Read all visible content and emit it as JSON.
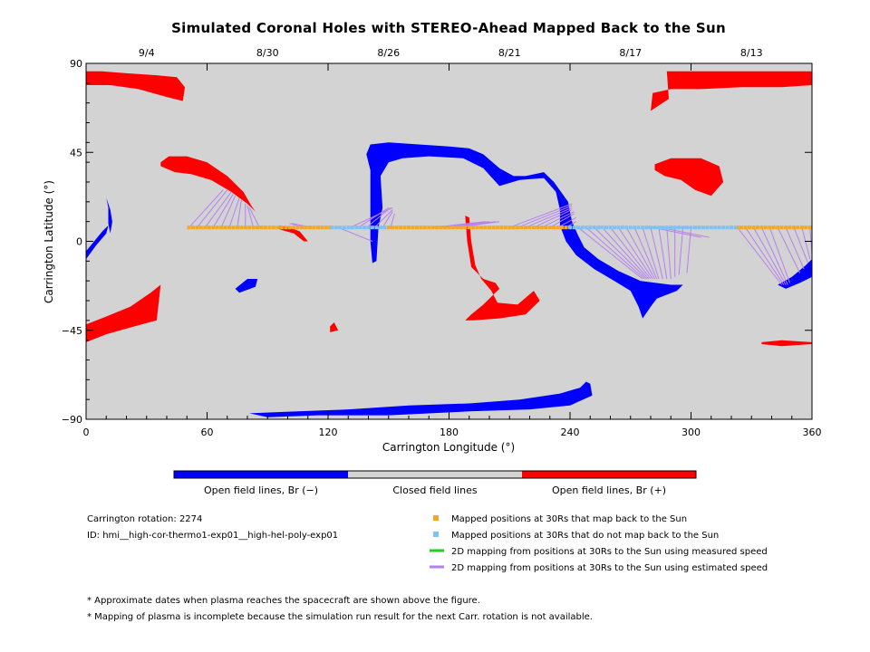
{
  "title": "Simulated Coronal Holes with STEREO-Ahead Mapped Back to the Sun",
  "chart_data": {
    "type": "scatter",
    "title": "Simulated Coronal Holes with STEREO-Ahead Mapped Back to the Sun",
    "xlabel": "Carrington Longitude (°)",
    "ylabel": "Carrington Latitude (°)",
    "xlim": [
      0,
      360
    ],
    "ylim": [
      -90,
      90
    ],
    "x_ticks": [
      0,
      60,
      120,
      180,
      240,
      300,
      360
    ],
    "y_ticks": [
      -90,
      -45,
      0,
      45,
      90
    ],
    "y_tick_labels": [
      "−90",
      "−45",
      "0",
      "45",
      "90"
    ],
    "top_axis_dates": [
      {
        "lon": 30,
        "label": "9/4"
      },
      {
        "lon": 90,
        "label": "8/30"
      },
      {
        "lon": 150,
        "label": "8/26"
      },
      {
        "lon": 210,
        "label": "8/21"
      },
      {
        "lon": 270,
        "label": "8/17"
      },
      {
        "lon": 330,
        "label": "8/13"
      }
    ],
    "mapped_positions_lat": 7,
    "series": [
      {
        "name": "Mapped positions at 30Rs that map back to the Sun",
        "color": "#f5a623",
        "x_ranges": [
          [
            51,
            122
          ],
          [
            150,
            240
          ],
          [
            323,
            360
          ]
        ]
      },
      {
        "name": "Mapped positions at 30Rs that do not map back to the Sun",
        "color": "#7cc3f5",
        "x_ranges": [
          [
            122,
            150
          ],
          [
            240,
            323
          ]
        ]
      },
      {
        "name": "2D mapping from positions at 30Rs to the Sun using measured speed",
        "color": "#1fd21f"
      },
      {
        "name": "2D mapping from positions at 30Rs to the Sun using estimated speed",
        "color": "#b87ff2"
      }
    ],
    "mapping_lines": [
      {
        "x0": 51,
        "x1": 68,
        "y1": 26
      },
      {
        "x0": 55,
        "x1": 70,
        "y1": 26
      },
      {
        "x0": 59,
        "x1": 72,
        "y1": 25
      },
      {
        "x0": 63,
        "x1": 73,
        "y1": 24
      },
      {
        "x0": 67,
        "x1": 74,
        "y1": 23
      },
      {
        "x0": 71,
        "x1": 76,
        "y1": 22
      },
      {
        "x0": 75,
        "x1": 77,
        "y1": 21
      },
      {
        "x0": 79,
        "x1": 79,
        "y1": 19
      },
      {
        "x0": 83,
        "x1": 80,
        "y1": 18
      },
      {
        "x0": 86,
        "x1": 81,
        "y1": 17
      },
      {
        "x0": 112,
        "x1": 102,
        "y1": 9
      },
      {
        "x0": 108,
        "x1": 101,
        "y1": 9
      },
      {
        "x0": 135,
        "x1": 150,
        "y1": 17
      },
      {
        "x0": 139,
        "x1": 151,
        "y1": 17
      },
      {
        "x0": 143,
        "x1": 152,
        "y1": 16
      },
      {
        "x0": 147,
        "x1": 152,
        "y1": 15
      },
      {
        "x0": 151,
        "x1": 153,
        "y1": 14
      },
      {
        "x0": 125,
        "x1": 142,
        "y1": 0
      },
      {
        "x0": 131,
        "x1": 152,
        "y1": 17
      },
      {
        "x0": 172,
        "x1": 198,
        "y1": 10
      },
      {
        "x0": 176,
        "x1": 200,
        "y1": 10
      },
      {
        "x0": 180,
        "x1": 203,
        "y1": 10
      },
      {
        "x0": 184,
        "x1": 205,
        "y1": 10
      },
      {
        "x0": 210,
        "x1": 241,
        "y1": 19
      },
      {
        "x0": 214,
        "x1": 241,
        "y1": 18
      },
      {
        "x0": 218,
        "x1": 241,
        "y1": 17
      },
      {
        "x0": 222,
        "x1": 241,
        "y1": 16
      },
      {
        "x0": 226,
        "x1": 242,
        "y1": 15
      },
      {
        "x0": 230,
        "x1": 242,
        "y1": 14
      },
      {
        "x0": 234,
        "x1": 243,
        "y1": 12
      },
      {
        "x0": 238,
        "x1": 243,
        "y1": 10
      },
      {
        "x0": 244,
        "x1": 276,
        "y1": -19
      },
      {
        "x0": 248,
        "x1": 277,
        "y1": -19
      },
      {
        "x0": 252,
        "x1": 278,
        "y1": -19
      },
      {
        "x0": 256,
        "x1": 279,
        "y1": -19
      },
      {
        "x0": 260,
        "x1": 280,
        "y1": -19
      },
      {
        "x0": 264,
        "x1": 281,
        "y1": -19
      },
      {
        "x0": 268,
        "x1": 282,
        "y1": -19
      },
      {
        "x0": 272,
        "x1": 283,
        "y1": -19
      },
      {
        "x0": 276,
        "x1": 284,
        "y1": -19
      },
      {
        "x0": 280,
        "x1": 286,
        "y1": -19
      },
      {
        "x0": 284,
        "x1": 288,
        "y1": -19
      },
      {
        "x0": 288,
        "x1": 290,
        "y1": -19
      },
      {
        "x0": 292,
        "x1": 292,
        "y1": -18
      },
      {
        "x0": 296,
        "x1": 294,
        "y1": -17
      },
      {
        "x0": 300,
        "x1": 298,
        "y1": -16
      },
      {
        "x0": 277,
        "x1": 301,
        "y1": 7
      },
      {
        "x0": 281,
        "x1": 305,
        "y1": 2
      },
      {
        "x0": 285,
        "x1": 309,
        "y1": 2
      },
      {
        "x0": 323,
        "x1": 345,
        "y1": -22
      },
      {
        "x0": 327,
        "x1": 346,
        "y1": -22
      },
      {
        "x0": 331,
        "x1": 347,
        "y1": -22
      },
      {
        "x0": 335,
        "x1": 348,
        "y1": -22
      },
      {
        "x0": 339,
        "x1": 349,
        "y1": -21
      },
      {
        "x0": 343,
        "x1": 354,
        "y1": -16
      },
      {
        "x0": 347,
        "x1": 356,
        "y1": -14
      },
      {
        "x0": 351,
        "x1": 358,
        "y1": -11
      },
      {
        "x0": 355,
        "x1": 359,
        "y1": -9
      },
      {
        "x0": 359,
        "x1": 360,
        "y1": -7
      }
    ],
    "regions": [
      {
        "polarity": "positive",
        "color": "#ff0000",
        "points": [
          [
            0,
            86
          ],
          [
            8,
            86
          ],
          [
            20,
            85
          ],
          [
            35,
            84
          ],
          [
            45,
            83
          ],
          [
            49,
            78
          ],
          [
            48,
            71
          ],
          [
            40,
            73
          ],
          [
            26,
            77
          ],
          [
            12,
            79
          ],
          [
            0,
            79
          ]
        ]
      },
      {
        "polarity": "positive",
        "color": "#ff0000",
        "points": [
          [
            288,
            86
          ],
          [
            305,
            86
          ],
          [
            325,
            86
          ],
          [
            345,
            86
          ],
          [
            360,
            86
          ],
          [
            360,
            79
          ],
          [
            345,
            78
          ],
          [
            325,
            78
          ],
          [
            305,
            77
          ],
          [
            290,
            77
          ],
          [
            281,
            75
          ],
          [
            280,
            66
          ],
          [
            289,
            72
          ],
          [
            288,
            86
          ]
        ]
      },
      {
        "polarity": "positive",
        "color": "#ff0000",
        "points": [
          [
            37,
            40
          ],
          [
            41,
            43
          ],
          [
            50,
            43
          ],
          [
            60,
            40
          ],
          [
            70,
            33
          ],
          [
            78,
            25
          ],
          [
            82,
            18
          ],
          [
            84,
            15
          ],
          [
            80,
            19
          ],
          [
            72,
            25
          ],
          [
            62,
            31
          ],
          [
            52,
            34
          ],
          [
            44,
            35
          ],
          [
            37,
            38
          ]
        ]
      },
      {
        "polarity": "positive",
        "color": "#ff0000",
        "points": [
          [
            282,
            39
          ],
          [
            290,
            42
          ],
          [
            305,
            42
          ],
          [
            314,
            38
          ],
          [
            316,
            30
          ],
          [
            310,
            23
          ],
          [
            302,
            26
          ],
          [
            295,
            31
          ],
          [
            287,
            33
          ],
          [
            282,
            36
          ]
        ]
      },
      {
        "polarity": "positive",
        "color": "#ff0000",
        "points": [
          [
            0,
            -42
          ],
          [
            10,
            -38
          ],
          [
            22,
            -33
          ],
          [
            32,
            -26
          ],
          [
            37,
            -22
          ],
          [
            35,
            -40
          ],
          [
            24,
            -43
          ],
          [
            10,
            -47
          ],
          [
            0,
            -51
          ]
        ]
      },
      {
        "polarity": "positive",
        "color": "#ff0000",
        "points": [
          [
            188,
            13
          ],
          [
            189,
            0
          ],
          [
            191,
            -13
          ],
          [
            197,
            -19
          ],
          [
            203,
            -21
          ],
          [
            205,
            -24
          ],
          [
            197,
            -32
          ],
          [
            191,
            -37
          ],
          [
            188,
            -40
          ],
          [
            192,
            -40
          ],
          [
            205,
            -39
          ],
          [
            218,
            -37
          ],
          [
            225,
            -30
          ],
          [
            222,
            -25
          ],
          [
            214,
            -32
          ],
          [
            204,
            -31
          ],
          [
            201,
            -25
          ],
          [
            196,
            -19
          ],
          [
            193,
            -12
          ],
          [
            191,
            0
          ],
          [
            190,
            12
          ]
        ]
      },
      {
        "polarity": "positive",
        "color": "#ff0000",
        "points": [
          [
            335,
            -51
          ],
          [
            345,
            -50
          ],
          [
            360,
            -51
          ],
          [
            360,
            -52
          ],
          [
            345,
            -53
          ],
          [
            335,
            -52
          ]
        ]
      },
      {
        "polarity": "positive",
        "color": "#ff0000",
        "points": [
          [
            96,
            8
          ],
          [
            101,
            7
          ],
          [
            106,
            5
          ],
          [
            110,
            0
          ],
          [
            108,
            0
          ],
          [
            103,
            4
          ],
          [
            96,
            6
          ]
        ]
      },
      {
        "polarity": "positive",
        "color": "#ff0000",
        "points": [
          [
            121,
            -43
          ],
          [
            123,
            -41
          ],
          [
            125,
            -45
          ],
          [
            121,
            -46
          ]
        ]
      },
      {
        "polarity": "negative",
        "color": "#0000ff",
        "points": [
          [
            141,
            49
          ],
          [
            150,
            50
          ],
          [
            165,
            49
          ],
          [
            180,
            48
          ],
          [
            190,
            47
          ],
          [
            197,
            44
          ],
          [
            205,
            37
          ],
          [
            212,
            33
          ],
          [
            218,
            33
          ],
          [
            227,
            35
          ],
          [
            232,
            30
          ],
          [
            239,
            20
          ],
          [
            241,
            10
          ],
          [
            244,
            3
          ],
          [
            247,
            -3
          ],
          [
            254,
            -9
          ],
          [
            264,
            -15
          ],
          [
            275,
            -20
          ],
          [
            290,
            -22
          ],
          [
            296,
            -22
          ],
          [
            293,
            -25
          ],
          [
            283,
            -29
          ],
          [
            280,
            -33
          ],
          [
            276,
            -39
          ],
          [
            274,
            -33
          ],
          [
            270,
            -25
          ],
          [
            262,
            -20
          ],
          [
            252,
            -14
          ],
          [
            243,
            -7
          ],
          [
            238,
            0
          ],
          [
            235,
            8
          ],
          [
            235,
            16
          ],
          [
            233,
            25
          ],
          [
            227,
            32
          ],
          [
            215,
            31
          ],
          [
            205,
            28
          ],
          [
            197,
            37
          ],
          [
            187,
            42
          ],
          [
            170,
            43
          ],
          [
            157,
            42
          ],
          [
            150,
            40
          ],
          [
            146,
            33
          ],
          [
            147,
            17
          ],
          [
            145,
            7
          ],
          [
            144,
            -10
          ],
          [
            142,
            -11
          ],
          [
            141,
            0
          ],
          [
            141,
            20
          ],
          [
            141,
            36
          ],
          [
            139,
            44
          ]
        ]
      },
      {
        "polarity": "negative",
        "color": "#0000ff",
        "points": [
          [
            81,
            -87
          ],
          [
            105,
            -86
          ],
          [
            130,
            -85
          ],
          [
            160,
            -83
          ],
          [
            190,
            -82
          ],
          [
            215,
            -80
          ],
          [
            235,
            -77
          ],
          [
            245,
            -74
          ],
          [
            248,
            -71
          ],
          [
            250,
            -72
          ],
          [
            251,
            -78
          ],
          [
            240,
            -83
          ],
          [
            220,
            -85
          ],
          [
            190,
            -86
          ],
          [
            150,
            -88
          ],
          [
            115,
            -88
          ],
          [
            90,
            -89
          ]
        ]
      },
      {
        "polarity": "negative",
        "color": "#0000ff",
        "points": [
          [
            343,
            -22
          ],
          [
            350,
            -18
          ],
          [
            357,
            -12
          ],
          [
            360,
            -9
          ],
          [
            360,
            -18
          ],
          [
            354,
            -21
          ],
          [
            347,
            -24
          ]
        ]
      },
      {
        "polarity": "negative",
        "color": "#0000ff",
        "points": [
          [
            0,
            -5
          ],
          [
            4,
            0
          ],
          [
            8,
            5
          ],
          [
            11,
            8
          ],
          [
            10,
            4
          ],
          [
            5,
            -2
          ],
          [
            0,
            -9
          ]
        ]
      },
      {
        "polarity": "negative",
        "color": "#0000ff",
        "points": [
          [
            10,
            22
          ],
          [
            12,
            16
          ],
          [
            13,
            10
          ],
          [
            12,
            4
          ],
          [
            11,
            9
          ],
          [
            11,
            17
          ]
        ]
      },
      {
        "polarity": "negative",
        "color": "#0000ff",
        "points": [
          [
            74,
            -24
          ],
          [
            80,
            -19
          ],
          [
            85,
            -19
          ],
          [
            84,
            -23
          ],
          [
            76,
            -26
          ]
        ]
      }
    ]
  },
  "colorbar": {
    "colors": [
      "#0000ff",
      "#d3d3d3",
      "#ff0000"
    ],
    "labels": [
      "Open field lines, Br (−)",
      "Closed field lines",
      "Open field lines, Br (+)"
    ]
  },
  "info": {
    "rotation": "Carrington rotation: 2274",
    "id": "ID: hmi__high-cor-thermo1-exp01__high-hel-poly-exp01"
  },
  "legend": [
    {
      "text": "Mapped positions at 30Rs that map back to the Sun",
      "color": "#f5a623",
      "kind": "square"
    },
    {
      "text": "Mapped positions at 30Rs that do not map back to the Sun",
      "color": "#7cc3f5",
      "kind": "square"
    },
    {
      "text": "2D mapping from positions at 30Rs to the Sun using measured speed",
      "color": "#1fd21f",
      "kind": "line"
    },
    {
      "text": "2D mapping from positions at 30Rs to the Sun using estimated speed",
      "color": "#b87ff2",
      "kind": "line"
    }
  ],
  "notes": [
    "* Approximate dates when plasma reaches the spacecraft are shown above the figure.",
    "* Mapping of plasma is incomplete because the simulation run result for the next Carr. rotation is not available."
  ]
}
